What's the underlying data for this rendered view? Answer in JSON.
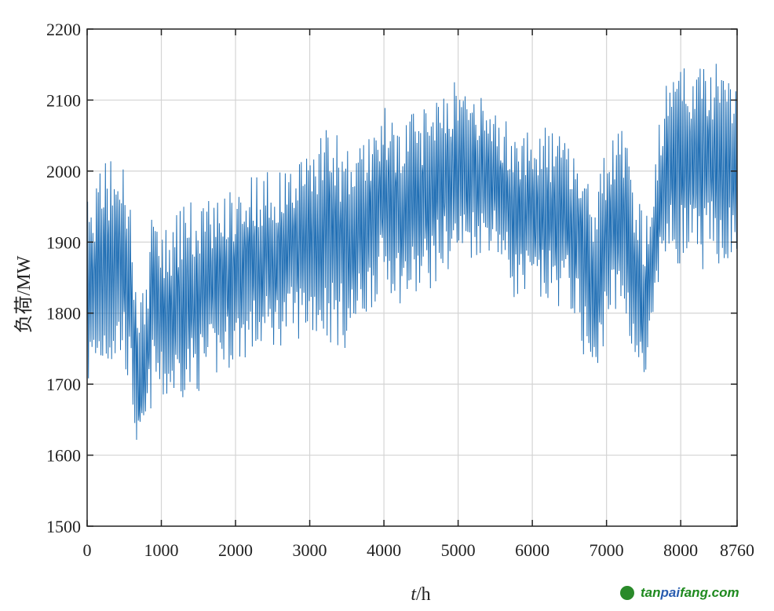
{
  "chart_data": {
    "type": "line",
    "title": "",
    "xlabel_italic": "t",
    "xlabel_unit": "/h",
    "ylabel": "负荷/MW",
    "xlim": [
      0,
      8760
    ],
    "ylim": [
      1500,
      2200
    ],
    "xticks": [
      0,
      1000,
      2000,
      3000,
      4000,
      5000,
      6000,
      7000,
      8000,
      8760
    ],
    "xtick_labels": [
      "0",
      "1000",
      "2000",
      "3000",
      "4000",
      "5000",
      "6000",
      "7000",
      "8000",
      "8760"
    ],
    "yticks": [
      1500,
      1600,
      1700,
      1800,
      1900,
      2000,
      2100,
      2200
    ],
    "ytick_labels": [
      "1500",
      "1600",
      "1700",
      "1800",
      "1900",
      "2000",
      "2100",
      "2200"
    ],
    "grid": true,
    "line_color": "#1f6eb4",
    "description_of_series": "hourly load, shown as upper/lower envelope",
    "envelope": {
      "x": [
        0,
        250,
        500,
        600,
        700,
        800,
        900,
        1000,
        1250,
        1500,
        1750,
        2000,
        2250,
        2500,
        2750,
        3000,
        3250,
        3500,
        3750,
        4000,
        4250,
        4500,
        4750,
        5000,
        5250,
        5500,
        5750,
        6000,
        6250,
        6500,
        6750,
        6850,
        7000,
        7250,
        7500,
        7650,
        7750,
        8000,
        8250,
        8500,
        8760
      ],
      "upper": [
        1950,
        2010,
        2000,
        1930,
        1800,
        1840,
        1970,
        1900,
        1940,
        1950,
        1960,
        1970,
        1990,
        1990,
        2000,
        2030,
        2060,
        2020,
        2040,
        2080,
        2060,
        2080,
        2120,
        2120,
        2100,
        2080,
        2050,
        2060,
        2050,
        2040,
        2000,
        1960,
        2030,
        2050,
        1920,
        2000,
        2100,
        2150,
        2140,
        2160,
        2110
      ],
      "lower": [
        1700,
        1730,
        1740,
        1680,
        1580,
        1640,
        1700,
        1680,
        1690,
        1700,
        1720,
        1740,
        1750,
        1760,
        1770,
        1780,
        1770,
        1760,
        1800,
        1850,
        1820,
        1830,
        1860,
        1880,
        1890,
        1900,
        1830,
        1820,
        1820,
        1820,
        1730,
        1680,
        1800,
        1800,
        1680,
        1780,
        1880,
        1880,
        1870,
        1880,
        1880
      ]
    }
  },
  "watermark": {
    "logo_text": "tp",
    "text_a": "tan",
    "text_b": "pai",
    "text_c": "fang.com"
  }
}
